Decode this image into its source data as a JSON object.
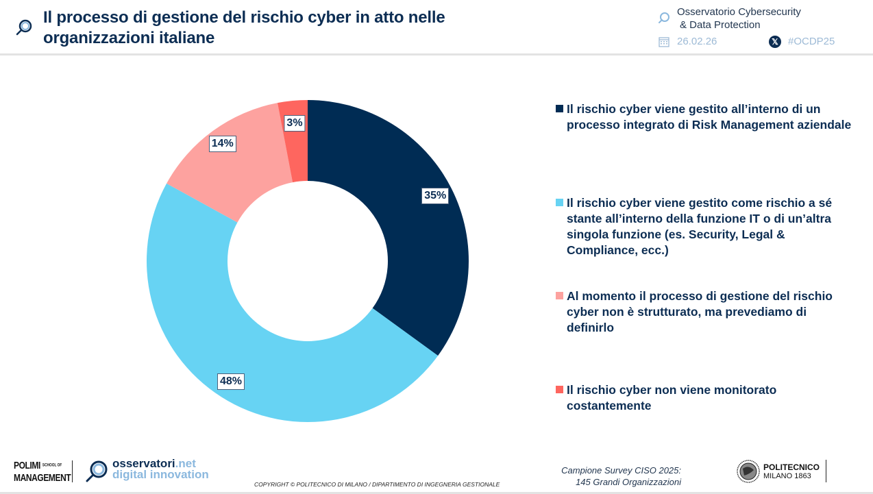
{
  "header": {
    "title_line1": "Il processo di gestione del rischio cyber in atto nelle",
    "title_line2": "organizzazioni italiane",
    "observatory_line1": "Osservatorio Cybersecurity",
    "observatory_line2": "& Data Protection",
    "date": "26.02.26",
    "hashtag": "#OCDP25",
    "icons": {
      "title": "magnifier-logo-icon",
      "observatory": "magnifier-logo-icon",
      "date": "calendar-icon",
      "social": "x-icon"
    }
  },
  "colors": {
    "brand_navy": "#0c2d53",
    "light_blue": "#67d3f3",
    "salmon": "#fda29f",
    "red": "#fe665f",
    "muted_blue": "#9dbad6"
  },
  "chart_data": {
    "type": "pie",
    "variant": "donut",
    "title": "Il processo di gestione del rischio cyber in atto nelle organizzazioni italiane",
    "start_angle": "12 o'clock, clockwise",
    "legend_position": "right",
    "categories": [
      "Il rischio cyber viene gestito all’interno di un processo integrato di Risk Management aziendale",
      "Il rischio cyber viene gestito come rischio a sé stante all’interno della funzione IT o di un’altra singola funzione (es. Security, Legal & Compliance, ecc.)",
      "Al momento il processo di gestione del rischio cyber non è strutturato, ma prevediamo di definirlo",
      "Il rischio cyber non viene monitorato costantemente"
    ],
    "values": [
      35,
      48,
      14,
      3
    ],
    "labels": [
      "35%",
      "48%",
      "14%",
      "3%"
    ],
    "colors": [
      "#002c54",
      "#67d3f3",
      "#fda29f",
      "#fe665f"
    ],
    "unit": "%"
  },
  "footer": {
    "polimi_line1": "POLIMI",
    "polimi_small": "SCHOOL OF",
    "polimi_line2": "MANAGEMENT",
    "brand_main": "osservatori",
    "brand_tld": ".net",
    "brand_sub": "digital innovation",
    "copyright": "COPYRIGHT © POLITECNICO DI MILANO / DIPARTIMENTO DI INGEGNERIA GESTIONALE",
    "sample_line1": "Campione Survey CISO 2025:",
    "sample_line2": "145 Grandi Organizzazioni",
    "politecnico_line1": "POLITECNICO",
    "politecnico_line2": "MILANO 1863"
  }
}
